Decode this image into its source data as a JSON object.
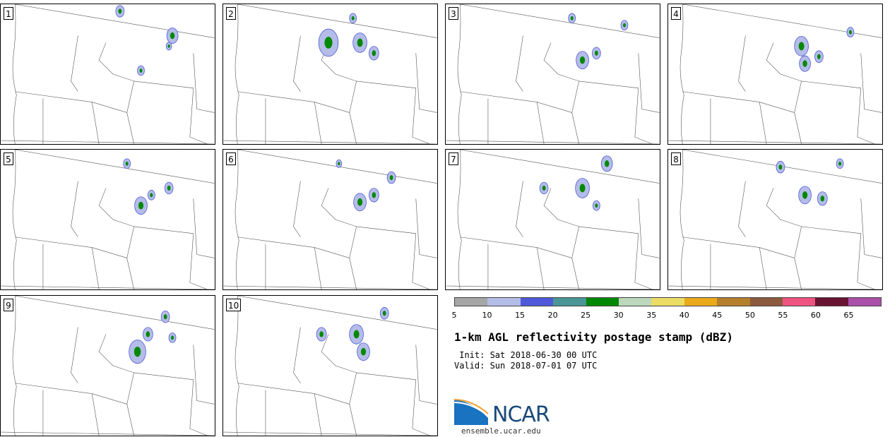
{
  "panels": [
    {
      "label": "1"
    },
    {
      "label": "2"
    },
    {
      "label": "3"
    },
    {
      "label": "4"
    },
    {
      "label": "5"
    },
    {
      "label": "6"
    },
    {
      "label": "7"
    },
    {
      "label": "8"
    },
    {
      "label": "9"
    },
    {
      "label": "10"
    }
  ],
  "colorbar": {
    "colors": [
      "#a6a6a6",
      "#b4bce8",
      "#505ad8",
      "#4a9696",
      "#008800",
      "#bcd8bc",
      "#eadc64",
      "#eaaa1c",
      "#b4802c",
      "#8c5a3c",
      "#ee5480",
      "#6a1434",
      "#aa50aa"
    ],
    "ticks": [
      "5",
      "10",
      "15",
      "20",
      "25",
      "30",
      "35",
      "40",
      "45",
      "50",
      "55",
      "60",
      "65"
    ]
  },
  "title": "1-km AGL reflectivity postage stamp (dBZ)",
  "init": " Init: Sat 2018-06-30 00 UTC",
  "valid": "Valid: Sun 2018-07-01 07 UTC",
  "logo": {
    "text": "NCAR",
    "url": "ensemble.ucar.edu"
  }
}
